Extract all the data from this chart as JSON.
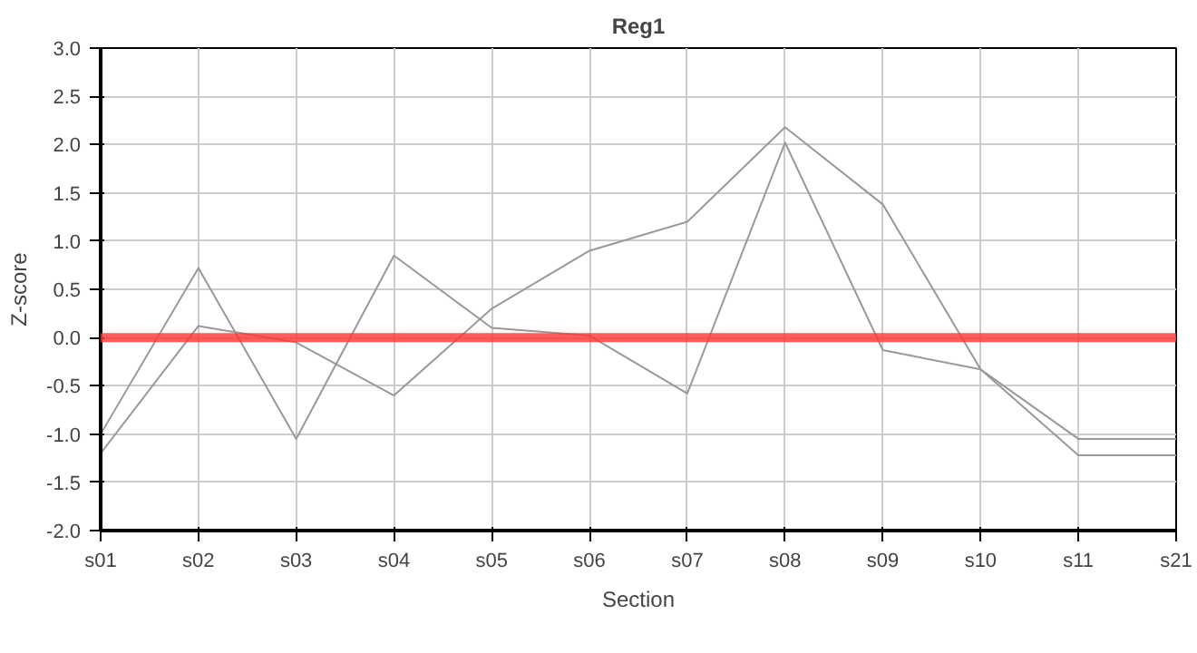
{
  "chart_data": {
    "type": "line",
    "title": "Reg1",
    "xlabel": "Section",
    "ylabel": "Z-score",
    "categories": [
      "s01",
      "s02",
      "s03",
      "s04",
      "s05",
      "s06",
      "s07",
      "s08",
      "s09",
      "s10",
      "s11",
      "s21"
    ],
    "series": [
      {
        "color": "#999999",
        "values": [
          -1.0,
          0.72,
          -1.05,
          0.85,
          0.1,
          0.02,
          -0.58,
          2.02,
          -0.13,
          -0.33,
          -1.05,
          -1.05
        ]
      },
      {
        "color": "#999999",
        "values": [
          -1.2,
          0.12,
          -0.05,
          -0.6,
          0.3,
          0.9,
          1.2,
          2.18,
          1.38,
          -0.33,
          -1.22,
          -1.22
        ]
      }
    ],
    "ylim": [
      -2.0,
      3.0
    ],
    "yticks": [
      {
        "value": -2,
        "label": "-2.0"
      },
      {
        "value": -1.5,
        "label": "-1.5"
      },
      {
        "value": -1,
        "label": "-1.0"
      },
      {
        "value": -0.5,
        "label": "-0.5"
      },
      {
        "value": 0,
        "label": "0.0"
      },
      {
        "value": 0.5,
        "label": "0.5"
      },
      {
        "value": 1,
        "label": "1.0"
      },
      {
        "value": 1.5,
        "label": "1.5"
      },
      {
        "value": 2,
        "label": "2.0"
      },
      {
        "value": 2.5,
        "label": "2.5"
      },
      {
        "value": 3,
        "label": "3.0"
      }
    ],
    "ref_lines": [
      {
        "axis": "y",
        "value": 0,
        "color": "#ff3333"
      }
    ],
    "grid": true,
    "marker": "none",
    "line_style": "solid"
  }
}
